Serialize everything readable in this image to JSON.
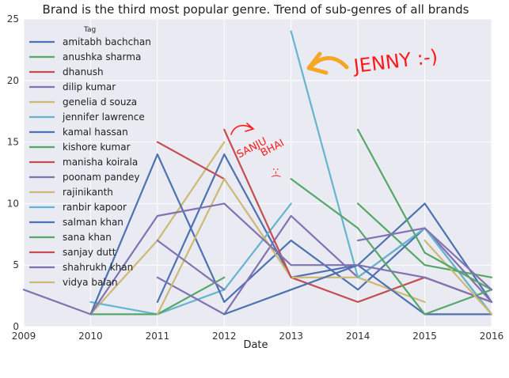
{
  "chart_data": {
    "type": "line",
    "title": "Brand is the third most popular genre. Trend of sub-genres of all brands",
    "xlabel": "Date",
    "ylabel": "",
    "xlim": [
      2009,
      2016
    ],
    "ylim": [
      0,
      25
    ],
    "xticks": [
      "2009",
      "2010",
      "2011",
      "2012",
      "2013",
      "2014",
      "2015",
      "2016"
    ],
    "yticks": [
      "0",
      "5",
      "10",
      "15",
      "20",
      "25"
    ],
    "grid": true,
    "legend": {
      "title": "Tag",
      "placement": "top-left"
    },
    "series": [
      {
        "name": "amitabh bachchan",
        "color": "#4c72b0",
        "points": [
          [
            2011,
            2
          ],
          [
            2012,
            14
          ],
          [
            2013,
            4
          ],
          [
            2014,
            5
          ],
          [
            2015,
            10
          ],
          [
            2016,
            2
          ]
        ]
      },
      {
        "name": "anushka sharma",
        "color": "#55a868",
        "points": [
          [
            2014,
            10
          ],
          [
            2015,
            5
          ],
          [
            2016,
            4
          ]
        ]
      },
      {
        "name": "dhanush",
        "color": "#c44e52",
        "points": [
          [
            2013,
            4
          ],
          [
            2014,
            2
          ],
          [
            2015,
            4
          ],
          [
            2016,
            2
          ]
        ]
      },
      {
        "name": "dilip kumar",
        "color": "#8172b2",
        "points": [
          [
            2009,
            3
          ],
          [
            2010,
            1
          ]
        ]
      },
      {
        "name": "genelia d souza",
        "color": "#ccb974",
        "points": [
          [
            2010,
            1
          ],
          [
            2011,
            7
          ],
          [
            2012,
            15
          ]
        ]
      },
      {
        "name": "jennifer lawrence",
        "color": "#64b5cd",
        "points": [
          [
            2010,
            2
          ],
          [
            2011,
            1
          ],
          [
            2012,
            3
          ],
          [
            2013,
            10
          ]
        ]
      },
      {
        "name": "kamal hassan",
        "color": "#4c72b0",
        "points": [
          [
            2010,
            1
          ],
          [
            2011,
            14
          ],
          [
            2012,
            2
          ],
          [
            2013,
            7
          ],
          [
            2014,
            3
          ],
          [
            2015,
            8
          ],
          [
            2016,
            1
          ]
        ]
      },
      {
        "name": "kishore kumar",
        "color": "#55a868",
        "points": [
          [
            2010,
            1
          ],
          [
            2011,
            1
          ],
          [
            2012,
            4
          ]
        ]
      },
      {
        "name": "manisha koirala",
        "color": "#c44e52",
        "points": [
          [
            2011,
            15
          ],
          [
            2012,
            12
          ]
        ]
      },
      {
        "name": "poonam pandey",
        "color": "#8172b2",
        "points": [
          [
            2011,
            4
          ],
          [
            2012,
            1
          ],
          [
            2013,
            9
          ],
          [
            2014,
            4
          ],
          [
            2015,
            8
          ],
          [
            2016,
            2
          ]
        ]
      },
      {
        "name": "rajinikanth",
        "color": "#ccb974",
        "points": [
          [
            2011,
            1
          ],
          [
            2012,
            12
          ],
          [
            2013,
            4
          ],
          [
            2014,
            4
          ],
          [
            2015,
            2
          ]
        ]
      },
      {
        "name": "ranbir kapoor",
        "color": "#64b5cd",
        "points": [
          [
            2013,
            24
          ],
          [
            2014,
            4
          ],
          [
            2015,
            8
          ],
          [
            2016,
            1
          ]
        ]
      },
      {
        "name": "salman khan",
        "color": "#4c72b0",
        "points": [
          [
            2012,
            1
          ],
          [
            2013,
            3
          ],
          [
            2014,
            5
          ],
          [
            2015,
            1
          ],
          [
            2016,
            1
          ]
        ]
      },
      {
        "name": "sana khan",
        "color": "#55a868",
        "points": [
          [
            2013,
            12
          ],
          [
            2014,
            8
          ],
          [
            2015,
            1
          ],
          [
            2016,
            3
          ]
        ]
      },
      {
        "name": "sanjay dutt",
        "color": "#c44e52",
        "points": [
          [
            2012,
            16
          ],
          [
            2013,
            4
          ]
        ]
      },
      {
        "name": "shahrukh khan",
        "color": "#8172b2",
        "points": [
          [
            2010,
            1
          ],
          [
            2011,
            9
          ],
          [
            2012,
            10
          ],
          [
            2013,
            5
          ],
          [
            2014,
            5
          ],
          [
            2015,
            4
          ],
          [
            2016,
            2
          ]
        ]
      },
      {
        "name": "vidya balan",
        "color": "#ccb974",
        "points": [
          [
            2015,
            7
          ],
          [
            2016,
            1
          ]
        ]
      },
      {
        "name": "",
        "color": "#55a868",
        "points": [
          [
            2014,
            16
          ],
          [
            2015,
            6
          ],
          [
            2016,
            3
          ]
        ]
      },
      {
        "name": "",
        "color": "#8172b2",
        "points": [
          [
            2011,
            7
          ],
          [
            2012,
            3
          ]
        ]
      },
      {
        "name": "",
        "color": "#8172b2",
        "points": [
          [
            2014,
            7
          ],
          [
            2015,
            8
          ],
          [
            2016,
            3
          ]
        ]
      }
    ],
    "annotations": [
      {
        "text": "JENNY :-)",
        "author": "handwritten"
      },
      {
        "text": "SANJU",
        "author": "handwritten"
      },
      {
        "text": "BHAI",
        "author": "handwritten"
      },
      {
        "text": ":-(",
        "author": "handwritten"
      }
    ],
    "colors": {
      "background": "#eaeaf2",
      "grid": "#ffffff",
      "annotation": "#ff1a1a",
      "arrow": "#f5a623"
    }
  }
}
